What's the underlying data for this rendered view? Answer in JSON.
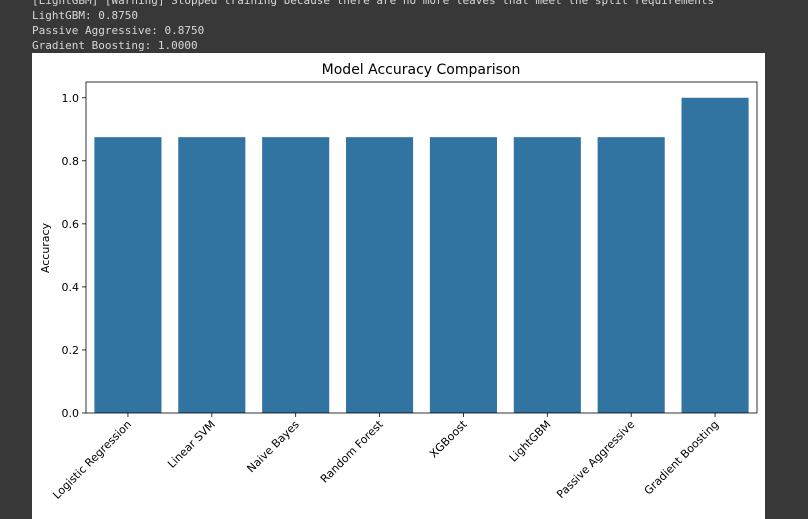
{
  "console": [
    "[LightGBM] [Warning] Stopped training because there are no more leaves that meet the split requirements",
    "LightGBM: 0.8750",
    "Passive Aggressive: 0.8750",
    "Gradient Boosting: 1.0000"
  ],
  "chart_data": {
    "type": "bar",
    "title": "Model Accuracy Comparison",
    "y_label": "Accuracy",
    "categories": [
      "Logistic Regression",
      "Linear SVM",
      "Naive Bayes",
      "Random Forest",
      "XGBoost",
      "LightGBM",
      "Passive Aggressive",
      "Gradient Boosting"
    ],
    "values": [
      0.875,
      0.875,
      0.875,
      0.875,
      0.875,
      0.875,
      0.875,
      1.0
    ],
    "color": "#3274a1",
    "ylim": [
      0,
      1.05
    ],
    "yticks": [
      {
        "value": 0,
        "label": "0.0"
      },
      0.2,
      0.4,
      0.6,
      0.8,
      {
        "value": 1,
        "label": "1.0"
      }
    ]
  }
}
